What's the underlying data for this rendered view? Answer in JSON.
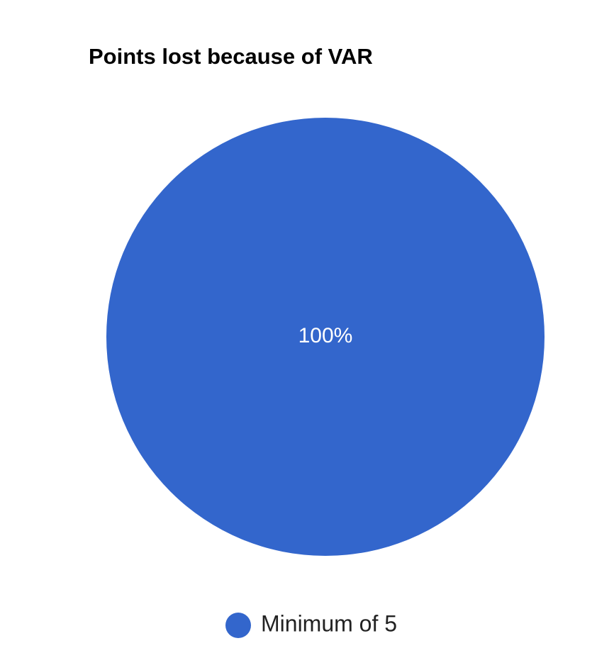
{
  "chart_data": {
    "type": "pie",
    "title": "Points lost because of VAR",
    "categories": [
      "Minimum of 5"
    ],
    "values": [
      100
    ],
    "value_labels": [
      "100%"
    ],
    "colors": [
      "#3366cc"
    ],
    "legend": "bottom"
  }
}
